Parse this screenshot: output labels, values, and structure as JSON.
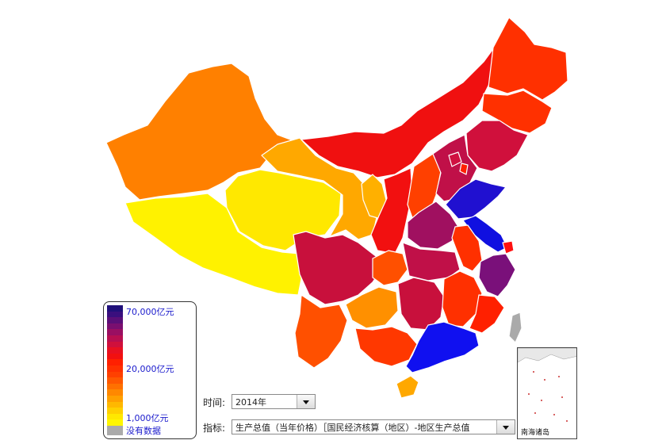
{
  "map": {
    "provinces": [
      {
        "name": "xinjiang",
        "color": "#FF8000"
      },
      {
        "name": "xizang",
        "color": "#FFF200"
      },
      {
        "name": "qinghai",
        "color": "#FFE800"
      },
      {
        "name": "gansu",
        "color": "#FFA800"
      },
      {
        "name": "neimenggu",
        "color": "#F01010"
      },
      {
        "name": "ningxia",
        "color": "#FFB000"
      },
      {
        "name": "shaanxi",
        "color": "#F21010"
      },
      {
        "name": "shanxi",
        "color": "#FF4000"
      },
      {
        "name": "heilongjiang",
        "color": "#FF3000"
      },
      {
        "name": "jilin",
        "color": "#FF3000"
      },
      {
        "name": "liaoning",
        "color": "#D0103C"
      },
      {
        "name": "hebei",
        "color": "#C01048"
      },
      {
        "name": "beijing",
        "color": "#D01040"
      },
      {
        "name": "tianjin",
        "color": "#FF2000"
      },
      {
        "name": "shandong",
        "color": "#2010D0"
      },
      {
        "name": "henan",
        "color": "#A01060"
      },
      {
        "name": "jiangsu",
        "color": "#1010E0"
      },
      {
        "name": "shanghai",
        "color": "#FF1010"
      },
      {
        "name": "anhui",
        "color": "#FF3000"
      },
      {
        "name": "zhejiang",
        "color": "#7A107A"
      },
      {
        "name": "sichuan",
        "color": "#C8103C"
      },
      {
        "name": "chongqing",
        "color": "#FF5000"
      },
      {
        "name": "hubei",
        "color": "#C01048"
      },
      {
        "name": "hunan",
        "color": "#C8103C"
      },
      {
        "name": "jiangxi",
        "color": "#FF3000"
      },
      {
        "name": "fujian",
        "color": "#FF2000"
      },
      {
        "name": "guizhou",
        "color": "#FF9000"
      },
      {
        "name": "yunnan",
        "color": "#FF5000"
      },
      {
        "name": "guangxi",
        "color": "#FF3800"
      },
      {
        "name": "guangdong",
        "color": "#1010F0"
      },
      {
        "name": "hainan",
        "color": "#FFA800"
      },
      {
        "name": "taiwan",
        "color": "#AAAAAA"
      }
    ]
  },
  "legend": {
    "max_label": "70,000亿元",
    "mid_label": "20,000亿元",
    "min_label": "1,000亿元",
    "nodata_label": "没有数据",
    "nodata_color": "#AAAAAA"
  },
  "controls": {
    "time_label": "时间:",
    "time_value": "2014年",
    "indicator_label": "指标:",
    "indicator_value": "生产总值（当年价格）［国民经济核算（地区）-地区生产总值"
  },
  "inset": {
    "label": "南海诸岛"
  }
}
